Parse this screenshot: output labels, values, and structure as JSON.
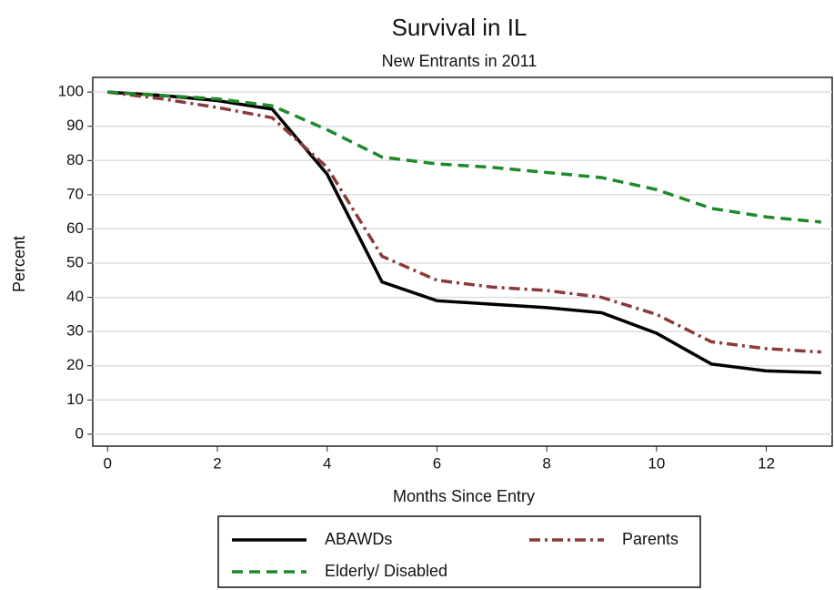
{
  "chart_data": {
    "type": "line",
    "title": "Survival in IL",
    "subtitle": "New Entrants in 2011",
    "x_label": "Months Since Entry",
    "y_label": "Percent",
    "x": [
      0,
      1,
      2,
      3,
      4,
      5,
      6,
      7,
      8,
      9,
      10,
      11,
      12,
      13
    ],
    "series": [
      {
        "name": "ABAWDs",
        "color": "#000000",
        "style": "solid",
        "values": [
          100,
          99,
          97.5,
          95,
          76,
          44.5,
          39,
          38,
          37,
          35.5,
          29.5,
          20.5,
          18.5,
          18
        ]
      },
      {
        "name": "Parents",
        "color": "#8b3a3a",
        "style": "dashdot",
        "values": [
          100,
          98,
          95.5,
          92.5,
          78,
          52,
          45,
          43,
          42,
          40,
          35,
          27,
          25,
          24
        ]
      },
      {
        "name": "Elderly/ Disabled",
        "color": "#1f8a2a",
        "style": "dash",
        "values": [
          100,
          99,
          98,
          96,
          89,
          81,
          79,
          78,
          76.5,
          75,
          71.5,
          66,
          63.5,
          62
        ]
      }
    ],
    "xlim": [
      -0.27,
      13.2
    ],
    "xticks": [
      0,
      2,
      4,
      6,
      8,
      10,
      12
    ],
    "ylim": [
      -3.5,
      104.3
    ],
    "yticks": [
      0,
      10,
      20,
      30,
      40,
      50,
      60,
      70,
      80,
      90,
      100
    ],
    "grid": true
  }
}
